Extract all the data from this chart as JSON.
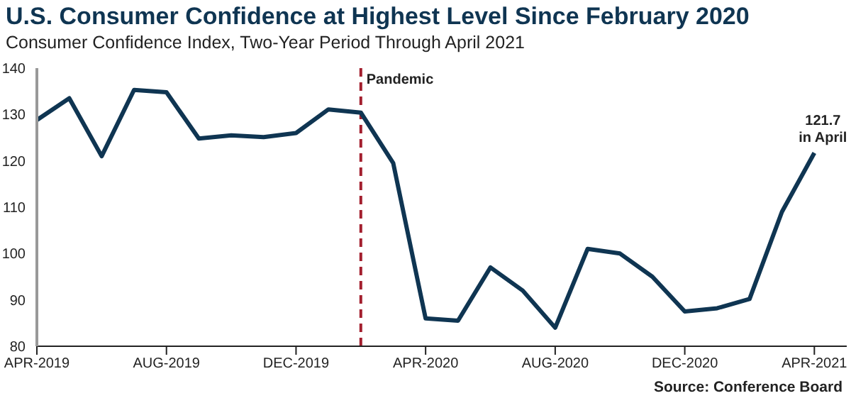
{
  "chart_data": {
    "type": "line",
    "title": "U.S. Consumer Confidence at Highest Level Since February 2020",
    "subtitle": "Consumer Confidence Index, Two-Year Period Through April 2021",
    "x": [
      "2019-04",
      "2019-05",
      "2019-06",
      "2019-07",
      "2019-08",
      "2019-09",
      "2019-10",
      "2019-11",
      "2019-12",
      "2020-01",
      "2020-02",
      "2020-03",
      "2020-04",
      "2020-05",
      "2020-06",
      "2020-07",
      "2020-08",
      "2020-09",
      "2020-10",
      "2020-11",
      "2020-12",
      "2021-01",
      "2021-02",
      "2021-03",
      "2021-04"
    ],
    "series": [
      {
        "color": "#0f3552",
        "values": [
          128.8,
          133.5,
          121,
          135.3,
          134.8,
          124.8,
          125.5,
          125.1,
          126,
          131.1,
          130.4,
          119.5,
          86,
          85.5,
          97,
          92,
          84,
          101,
          100,
          95,
          87.5,
          88.2,
          90.2,
          109,
          121.7
        ]
      }
    ],
    "xlim": [
      "2019-04",
      "2021-05"
    ],
    "xticks": [
      {
        "value": "2019-04",
        "label": "APR-2019"
      },
      {
        "value": "2019-08",
        "label": "AUG-2019"
      },
      {
        "value": "2019-12",
        "label": "DEC-2019"
      },
      {
        "value": "2020-04",
        "label": "APR-2020"
      },
      {
        "value": "2020-08",
        "label": "AUG-2020"
      },
      {
        "value": "2020-12",
        "label": "DEC-2020"
      },
      {
        "value": "2021-04",
        "label": "APR-2021"
      }
    ],
    "ylim": [
      80,
      140
    ],
    "yticks": [
      80,
      90,
      100,
      110,
      120,
      130,
      140
    ],
    "grid": false,
    "legend": false,
    "marker": "none",
    "line_style": "solid",
    "ref_lines": [
      {
        "axis": "x",
        "value": "2020-02",
        "label": "Pandemic",
        "color": "#a31f2e",
        "line_style": "dashed"
      }
    ],
    "annotations": [
      {
        "text": "121.7\nin April",
        "x": "2021-04",
        "y": 121.7
      },
      "Source: Conference Board"
    ]
  }
}
